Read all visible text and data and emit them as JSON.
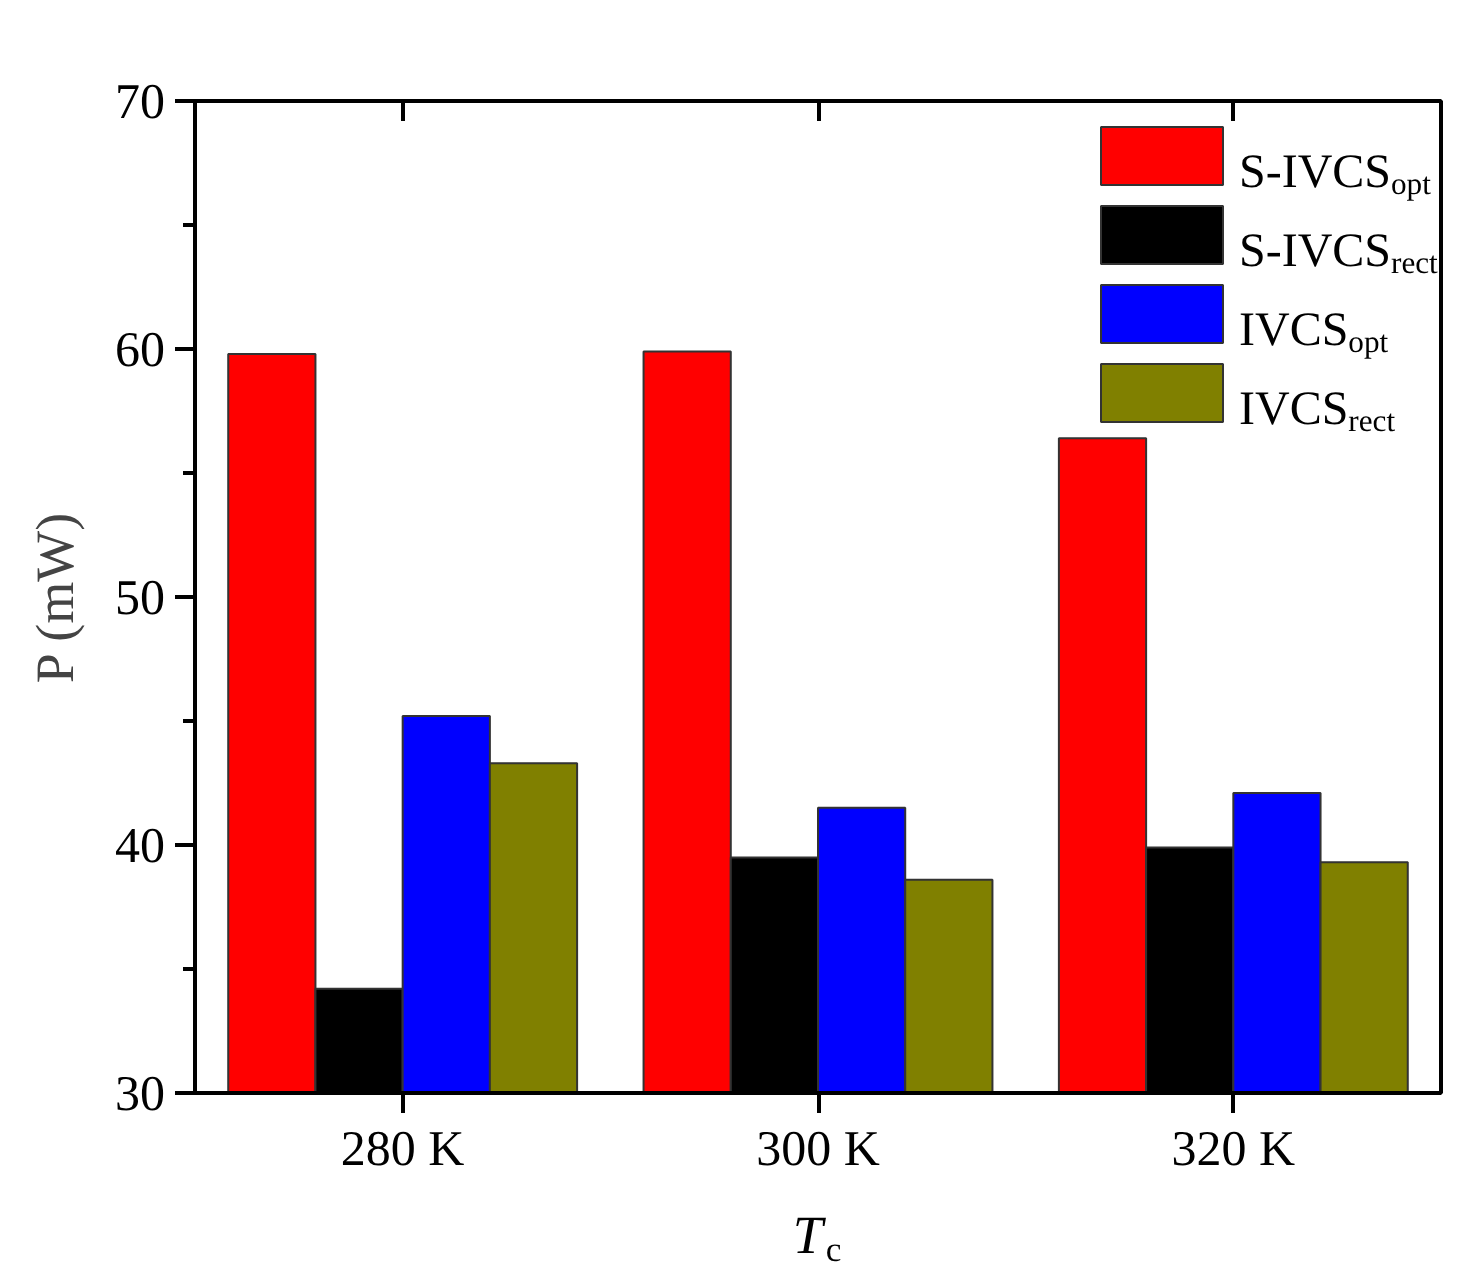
{
  "chart_data": {
    "type": "bar",
    "xlabel": "T$_{c}$",
    "ylabel": "P (mW)",
    "categories": [
      "280 K",
      "300 K",
      "320 K"
    ],
    "series": [
      {
        "name": "S-IVCS$_{opt}$",
        "color": "#ff0000",
        "values": [
          59.8,
          59.9,
          56.4
        ]
      },
      {
        "name": "S-IVCS$_{rect}$",
        "color": "#000000",
        "values": [
          34.2,
          39.5,
          39.9
        ]
      },
      {
        "name": "IVCS$_{opt}$",
        "color": "#0000ff",
        "values": [
          45.2,
          41.5,
          42.1
        ]
      },
      {
        "name": "IVCS$_{rect}$",
        "color": "#808000",
        "values": [
          43.3,
          38.6,
          39.3
        ]
      }
    ],
    "ylim": [
      30,
      70
    ],
    "yticks": [
      30,
      40,
      50,
      60,
      70
    ],
    "grid": false,
    "legend": "top right"
  }
}
